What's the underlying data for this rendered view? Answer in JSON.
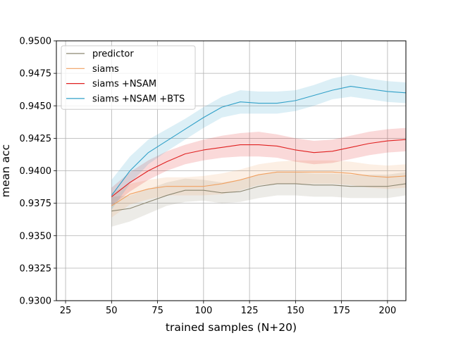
{
  "chart_data": {
    "type": "line",
    "title": "",
    "xlabel": "trained samples (N+20)",
    "ylabel": "mean acc",
    "xlim": [
      20,
      210
    ],
    "ylim": [
      0.93,
      0.95
    ],
    "xticks": [
      25,
      50,
      75,
      100,
      125,
      150,
      175,
      200
    ],
    "xtick_labels": [
      "25",
      "50",
      "75",
      "100",
      "125",
      "150",
      "175",
      "200"
    ],
    "yticks": [
      0.93,
      0.9325,
      0.935,
      0.9375,
      0.94,
      0.9425,
      0.945,
      0.9475,
      0.95
    ],
    "ytick_labels": [
      "0.9300",
      "0.9325",
      "0.9350",
      "0.9375",
      "0.9400",
      "0.9425",
      "0.9450",
      "0.9475",
      "0.9500"
    ],
    "grid": true,
    "legend_position": "top-left",
    "x": [
      50,
      60,
      70,
      80,
      90,
      100,
      110,
      120,
      130,
      140,
      150,
      160,
      170,
      180,
      190,
      200,
      210
    ],
    "series": [
      {
        "name": "predictor",
        "color": "#8c8670",
        "values": [
          0.9369,
          0.9371,
          0.9376,
          0.9381,
          0.9385,
          0.9385,
          0.9383,
          0.9384,
          0.9388,
          0.939,
          0.939,
          0.9389,
          0.9389,
          0.9388,
          0.9388,
          0.9388,
          0.939
        ],
        "lower": [
          0.9357,
          0.9361,
          0.9367,
          0.9373,
          0.9376,
          0.9377,
          0.9375,
          0.9376,
          0.9379,
          0.9381,
          0.9381,
          0.938,
          0.938,
          0.9379,
          0.9379,
          0.9379,
          0.9381
        ],
        "upper": [
          0.938,
          0.9381,
          0.9386,
          0.9391,
          0.9394,
          0.9393,
          0.9391,
          0.9393,
          0.9397,
          0.9399,
          0.9399,
          0.9398,
          0.9398,
          0.9397,
          0.9397,
          0.9397,
          0.9399
        ]
      },
      {
        "name": "siams",
        "color": "#f0a060",
        "values": [
          0.9373,
          0.9382,
          0.9386,
          0.9388,
          0.9388,
          0.9388,
          0.939,
          0.9393,
          0.9397,
          0.9399,
          0.9399,
          0.9399,
          0.9399,
          0.9398,
          0.9396,
          0.9395,
          0.9396
        ],
        "lower": [
          0.9364,
          0.9374,
          0.9378,
          0.9381,
          0.9381,
          0.9381,
          0.9382,
          0.9385,
          0.9389,
          0.939,
          0.939,
          0.939,
          0.939,
          0.9389,
          0.9387,
          0.9386,
          0.9387
        ],
        "upper": [
          0.9383,
          0.939,
          0.9393,
          0.9395,
          0.9395,
          0.9396,
          0.9398,
          0.9401,
          0.9405,
          0.9407,
          0.9408,
          0.9408,
          0.9408,
          0.9407,
          0.9405,
          0.9404,
          0.9405
        ]
      },
      {
        "name": "siams +NSAM",
        "color": "#e02020",
        "values": [
          0.938,
          0.9391,
          0.94,
          0.9407,
          0.9413,
          0.9416,
          0.9418,
          0.942,
          0.942,
          0.9419,
          0.9416,
          0.9414,
          0.9415,
          0.9418,
          0.9421,
          0.9423,
          0.9424
        ],
        "lower": [
          0.9373,
          0.9384,
          0.9393,
          0.94,
          0.9405,
          0.9408,
          0.941,
          0.9411,
          0.9411,
          0.941,
          0.9407,
          0.9405,
          0.9406,
          0.9409,
          0.9412,
          0.9414,
          0.9415
        ],
        "upper": [
          0.9387,
          0.9399,
          0.9408,
          0.9415,
          0.942,
          0.9424,
          0.9427,
          0.9429,
          0.943,
          0.9428,
          0.9425,
          0.9423,
          0.9424,
          0.9427,
          0.943,
          0.9432,
          0.9433
        ]
      },
      {
        "name": "siams +NSAM +BTS",
        "color": "#30a0c8",
        "values": [
          0.9381,
          0.94,
          0.9414,
          0.9423,
          0.9432,
          0.9441,
          0.9449,
          0.9453,
          0.9452,
          0.9452,
          0.9454,
          0.9458,
          0.9462,
          0.9465,
          0.9463,
          0.9461,
          0.946
        ],
        "lower": [
          0.937,
          0.939,
          0.9405,
          0.9415,
          0.9424,
          0.9433,
          0.9441,
          0.9444,
          0.9444,
          0.9444,
          0.9446,
          0.945,
          0.9455,
          0.9457,
          0.9455,
          0.9453,
          0.9452
        ],
        "upper": [
          0.9393,
          0.9411,
          0.9424,
          0.9432,
          0.944,
          0.9449,
          0.9457,
          0.9462,
          0.9461,
          0.9461,
          0.9462,
          0.9466,
          0.9471,
          0.9474,
          0.9471,
          0.9469,
          0.9468
        ]
      }
    ]
  }
}
